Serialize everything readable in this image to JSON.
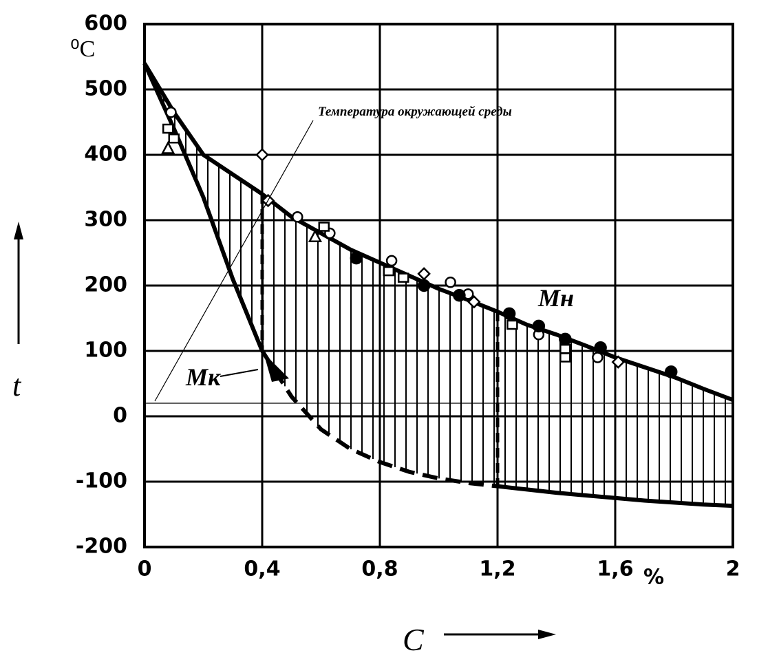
{
  "chart_data": {
    "type": "line",
    "y_label": "t",
    "x_label": "C",
    "x_unit": "%",
    "y_unit": "⁰C",
    "annotation": "Температура окружающей среды",
    "ambient": 20,
    "xlim": [
      0,
      2
    ],
    "ylim": [
      -200,
      600
    ],
    "xticks": [
      {
        "value": 0,
        "label": "0"
      },
      {
        "value": 0.4,
        "label": "0,4"
      },
      {
        "value": 0.8,
        "label": "0,8"
      },
      {
        "value": 1.2,
        "label": "1,2"
      },
      {
        "value": 1.6,
        "label": "1,6"
      },
      {
        "value": 2,
        "label": "2"
      }
    ],
    "yticks": [
      600,
      500,
      400,
      300,
      200,
      100,
      0,
      -100,
      -200
    ],
    "grid": true,
    "x": [
      0,
      0.1,
      0.2,
      0.3,
      0.4,
      0.5,
      0.6,
      0.7,
      0.8,
      0.9,
      1.0,
      1.1,
      1.2,
      1.3,
      1.4,
      1.5,
      1.6,
      1.7,
      1.8,
      1.9,
      2.0
    ],
    "series": [
      {
        "name": "Mн",
        "color": "#000",
        "style": "solid",
        "values": [
          540,
          465,
          400,
          370,
          340,
          305,
          280,
          255,
          235,
          215,
          195,
          178,
          160,
          140,
          125,
          108,
          90,
          75,
          60,
          42,
          25
        ]
      },
      {
        "name": "Mк",
        "color": "#000",
        "style": "solid",
        "values": [
          540,
          440,
          335,
          210,
          100,
          null,
          null,
          null,
          null,
          null,
          null,
          null,
          -107,
          -112,
          -117,
          -121,
          -125,
          -129,
          -132,
          -135,
          -137
        ]
      },
      {
        "color": "#000",
        "style": "dashed",
        "values": [
          null,
          null,
          null,
          null,
          100,
          30,
          -20,
          -50,
          -70,
          -85,
          -95,
          -102,
          -107,
          null,
          null,
          null,
          null,
          null,
          null,
          null,
          null
        ]
      },
      {
        "type": "scatter",
        "marker": "open-circle",
        "color": "#000",
        "x": [
          0.09,
          0.52,
          0.63,
          0.84,
          1.04,
          1.1,
          1.34,
          1.54
        ],
        "values": [
          465,
          305,
          280,
          238,
          205,
          187,
          125,
          90
        ]
      },
      {
        "type": "scatter",
        "marker": "filled-circle",
        "color": "#000",
        "x": [
          0.72,
          0.95,
          1.07,
          1.24,
          1.34,
          1.43,
          1.55,
          1.79
        ],
        "values": [
          242,
          200,
          185,
          157,
          138,
          118,
          105,
          68
        ]
      },
      {
        "type": "scatter",
        "marker": "square",
        "color": "#000",
        "x": [
          0.08,
          0.1,
          0.61,
          0.83,
          0.88,
          1.25,
          1.43,
          1.43
        ],
        "values": [
          440,
          425,
          290,
          222,
          212,
          140,
          90,
          103
        ]
      },
      {
        "type": "scatter",
        "marker": "triangle",
        "color": "#000",
        "x": [
          0.08,
          0.58
        ],
        "values": [
          410,
          275
        ]
      },
      {
        "type": "scatter",
        "marker": "diamond",
        "color": "#000",
        "x": [
          0.4,
          0.42,
          0.95,
          1.12,
          1.61
        ],
        "values": [
          400,
          330,
          218,
          175,
          83
        ]
      }
    ]
  }
}
